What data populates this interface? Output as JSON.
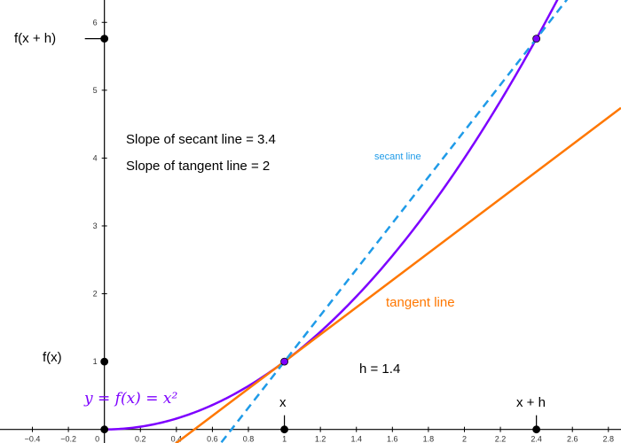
{
  "chart_data": {
    "type": "line",
    "title": "",
    "xlabel": "",
    "ylabel": "",
    "xlim": [
      -0.58,
      2.87
    ],
    "ylim": [
      -0.2,
      6.33
    ],
    "x_ticks": [
      "−0.4",
      "−0.2",
      "0",
      "0.2",
      "0.4",
      "0.6",
      "0.8",
      "1",
      "1.2",
      "1.4",
      "1.6",
      "1.8",
      "2",
      "2.2",
      "2.4",
      "2.6",
      "2.8"
    ],
    "x_tick_values": [
      -0.4,
      -0.2,
      0,
      0.2,
      0.4,
      0.6,
      0.8,
      1,
      1.2,
      1.4,
      1.6,
      1.8,
      2,
      2.2,
      2.4,
      2.6,
      2.8
    ],
    "y_ticks": [
      "1",
      "2",
      "3",
      "4",
      "5",
      "6"
    ],
    "y_tick_values": [
      1,
      2,
      3,
      4,
      5,
      6
    ],
    "grid": false,
    "series": [
      {
        "name": "y = f(x) = x²",
        "kind": "curve",
        "function": "x^2",
        "x_range": [
          0,
          2.6
        ],
        "color": "#7d00ff"
      },
      {
        "name": "tangent line",
        "kind": "line",
        "slope": 2,
        "intercept": -1,
        "x_range": [
          0.38,
          2.87
        ],
        "color": "#ff7700"
      },
      {
        "name": "secant line",
        "kind": "line",
        "slope": 3.4,
        "intercept": -2.4,
        "x_range": [
          0.65,
          2.58
        ],
        "color": "#1f9be8",
        "dashed": true
      }
    ],
    "points": [
      {
        "x": 1,
        "y": 1,
        "color": "#7d00ff"
      },
      {
        "x": 2.4,
        "y": 5.76,
        "color": "#7d00ff"
      },
      {
        "x": 0,
        "y": 1,
        "color": "#000000"
      },
      {
        "x": 0,
        "y": 5.76,
        "color": "#000000"
      },
      {
        "x": 1,
        "y": 0,
        "color": "#000000"
      },
      {
        "x": 2.4,
        "y": 0,
        "color": "#000000"
      },
      {
        "x": 0,
        "y": 0,
        "color": "#000000"
      }
    ],
    "annotations": {
      "fx_plus_h": "f(x + h)",
      "fx": "f(x)",
      "x_label": "x",
      "x_plus_h_label": "x + h",
      "slope_secant": "Slope of secant line = 3.4",
      "slope_tangent": "Slope of tangent line = 2",
      "secant_line": "secant line",
      "tangent_line": "tangent line",
      "h_value": "h = 1.4",
      "function_label": "y = f(x) = x²"
    }
  },
  "colors": {
    "curve": "#7d00ff",
    "tangent": "#ff7700",
    "secant": "#1f9be8",
    "axis": "#000000"
  }
}
